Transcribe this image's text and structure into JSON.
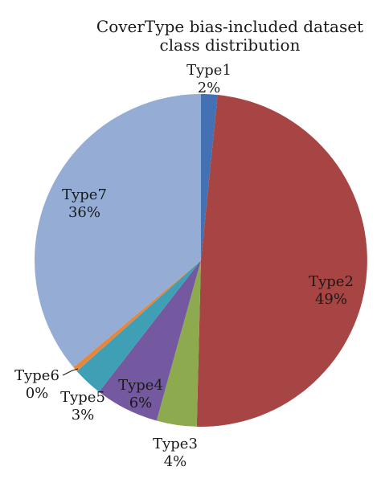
{
  "chart_data": {
    "type": "pie",
    "title_lines": [
      "CoverType bias-included dataset",
      "class distribution"
    ],
    "categories": [
      "Type1",
      "Type2",
      "Type3",
      "Type4",
      "Type5",
      "Type6",
      "Type7"
    ],
    "values": [
      1.6,
      48.8,
      3.9,
      6.2,
      2.9,
      0.5,
      36.1
    ],
    "value_labels": [
      "2%",
      "49%",
      "4%",
      "6%",
      "3%",
      "0%",
      "36%"
    ],
    "colors": [
      "#4471B3",
      "#A64543",
      "#8DAA4F",
      "#7458A0",
      "#3FA0B5",
      "#E5883E",
      "#95ADD4"
    ],
    "start_angle_deg": 0,
    "direction": "clockwise",
    "legend": "none"
  }
}
